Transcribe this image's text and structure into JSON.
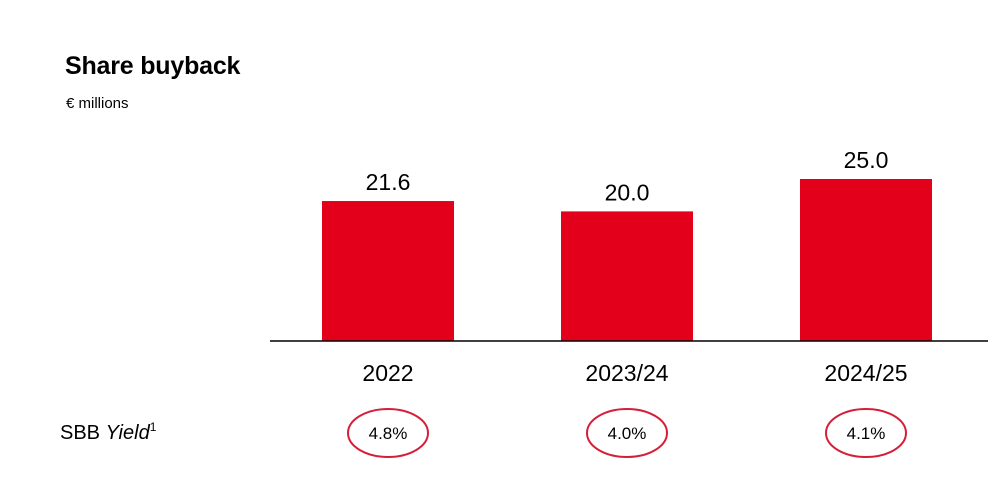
{
  "header": {
    "title": "Share buyback",
    "subtitle": "€ millions"
  },
  "yield_row": {
    "label_prefix": "SBB ",
    "label_italic": "Yield",
    "footnote": "1"
  },
  "colors": {
    "bar": "#e2001a",
    "circle": "#d51f3a",
    "axis": "#000000",
    "text": "#000000"
  },
  "chart_data": {
    "type": "bar",
    "title": "Share buyback",
    "subtitle": "€ millions",
    "categories": [
      "2022",
      "2023/24",
      "2024/25"
    ],
    "values": [
      21.6,
      20.0,
      25.0
    ],
    "value_labels": [
      "21.6",
      "20.0",
      "25.0"
    ],
    "yields": [
      "4.8%",
      "4.0%",
      "4.1%"
    ],
    "yield_label": "SBB Yield",
    "xlabel": "",
    "ylabel": "",
    "ylim": [
      0,
      25
    ],
    "grid": false
  }
}
